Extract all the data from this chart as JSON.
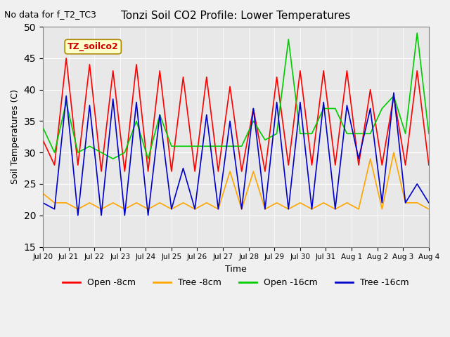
{
  "title": "Tonzi Soil CO2 Profile: Lower Temperatures",
  "no_data_text": "No data for f_T2_TC3",
  "legend_label_text": "TZ_soilco2",
  "xlabel": "Time",
  "ylabel": "Soil Temperatures (C)",
  "ylim": [
    15,
    50
  ],
  "yticks": [
    15,
    20,
    25,
    30,
    35,
    40,
    45,
    50
  ],
  "series": {
    "open_8cm": {
      "color": "#ff0000",
      "label": "Open -8cm"
    },
    "tree_8cm": {
      "color": "#ffa500",
      "label": "Tree -8cm"
    },
    "open_16cm": {
      "color": "#00cc00",
      "label": "Open -16cm"
    },
    "tree_16cm": {
      "color": "#0000cc",
      "label": "Tree -16cm"
    }
  },
  "x_tick_labels": [
    "Jul 20",
    "Jul 21",
    "Jul 22",
    "Jul 23",
    "Jul 24",
    "Jul 25",
    "Jul 26",
    "Jul 27",
    "Jul 28",
    "Jul 29",
    "Jul 30",
    "Jul 31",
    "Aug 1",
    "Aug 2",
    "Aug 3",
    "Aug 4"
  ],
  "open_8cm": [
    32,
    28,
    45,
    28,
    44,
    27,
    43,
    27,
    44,
    27,
    43,
    27,
    42,
    27,
    42,
    27,
    40.5,
    27,
    37,
    27,
    42,
    28,
    43,
    28,
    43,
    28,
    43,
    28,
    40,
    28,
    39,
    28,
    43,
    28
  ],
  "tree_8cm": [
    23.5,
    22,
    22,
    21,
    22,
    21,
    22,
    21,
    22,
    21,
    22,
    21,
    22,
    21,
    22,
    21,
    27,
    21,
    27,
    21,
    22,
    21,
    22,
    21,
    22,
    21,
    22,
    21,
    29,
    21,
    30,
    22,
    22,
    21
  ],
  "open_16cm": [
    34,
    30,
    38,
    30,
    31,
    30,
    29,
    30,
    35,
    29,
    36,
    31,
    31,
    31,
    31,
    31,
    31,
    31,
    35,
    32,
    33,
    48,
    33,
    33,
    37,
    37,
    33,
    33,
    33,
    37,
    39,
    33,
    49,
    33
  ],
  "tree_16cm": [
    22,
    21,
    39,
    20,
    37.5,
    20,
    38.5,
    20,
    38,
    20,
    36,
    21,
    27.5,
    21,
    36,
    21,
    35,
    21,
    37,
    21,
    38,
    21,
    38,
    21,
    38,
    21,
    37.5,
    29,
    37,
    22,
    39.5,
    22,
    25,
    22
  ]
}
